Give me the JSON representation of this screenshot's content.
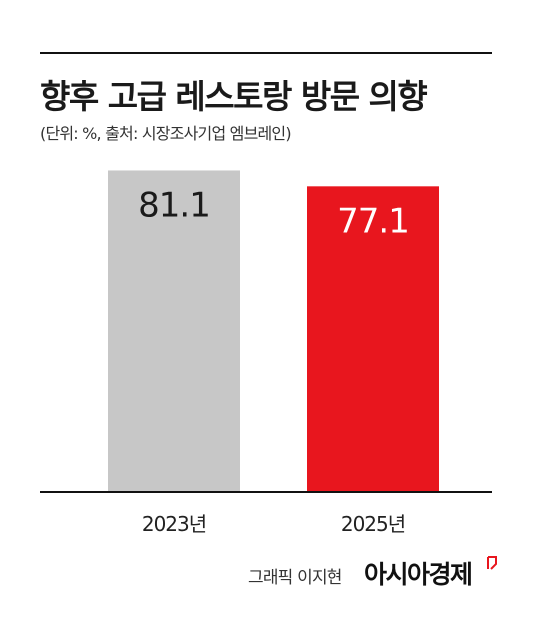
{
  "header": {
    "title": "향후 고급 레스토랑 방문 의향",
    "subtitle": "(단위: %, 출처: 시장조사기업 엠브레인)"
  },
  "chart_data": {
    "type": "bar",
    "categories": [
      "2023년",
      "2025년"
    ],
    "values": [
      81.1,
      77.1
    ],
    "value_labels": [
      "81.1",
      "77.1"
    ],
    "title": "향후 고급 레스토랑 방문 의향",
    "xlabel": "",
    "ylabel": "",
    "ylim": [
      0,
      85
    ],
    "grid": false,
    "legend": "none",
    "colors": [
      "#c7c7c7",
      "#e8161e"
    ],
    "label_colors": [
      "#1a1a1a",
      "#ffffff"
    ]
  },
  "footer": {
    "credit": "그래픽 이지현",
    "brand": "아시아경제",
    "brand_mark_color": "#e8161e"
  }
}
